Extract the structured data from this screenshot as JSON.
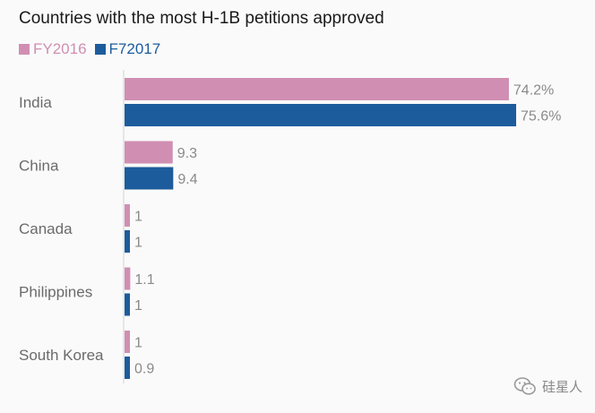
{
  "chart_data": {
    "type": "bar",
    "orientation": "horizontal",
    "title": "Countries with the most H-1B petitions approved",
    "categories": [
      "India",
      "China",
      "Canada",
      "Philippines",
      "South Korea"
    ],
    "series": [
      {
        "name": "FY2016",
        "color": "#d08fb2",
        "values": [
          74.2,
          9.3,
          1,
          1.1,
          1
        ],
        "labels": [
          "74.2%",
          "9.3",
          "1",
          "1.1",
          "1"
        ]
      },
      {
        "name": "F72017",
        "color": "#1d5c9c",
        "values": [
          75.6,
          9.4,
          1,
          1,
          0.9
        ],
        "labels": [
          "75.6%",
          "9.4",
          "1",
          "1",
          "0.9"
        ]
      }
    ],
    "xlim": [
      0,
      75.6
    ],
    "grid": false,
    "legend_position": "top-left"
  },
  "watermark": {
    "icon": "wechat-icon",
    "text": "硅星人"
  }
}
